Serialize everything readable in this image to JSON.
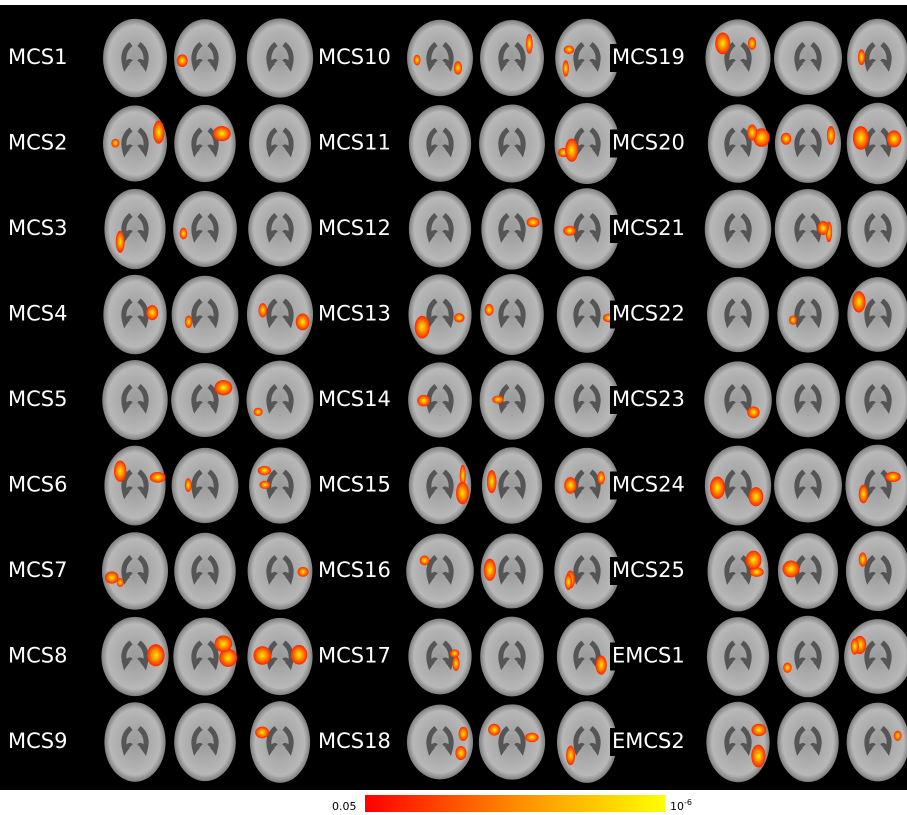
{
  "labels": [
    "MCS1",
    "MCS2",
    "MCS3",
    "MCS4",
    "MCS5",
    "MCS6",
    "MCS7",
    "MCS8",
    "MCS9",
    "MCS10",
    "MCS11",
    "MCS12",
    "MCS13",
    "MCS14",
    "MCS15",
    "MCS16",
    "MCS17",
    "MCS18",
    "MCS19",
    "MCS20",
    "MCS21",
    "MCS22",
    "MCS23",
    "MCS24",
    "MCS25",
    "EMCS1",
    "EMCS2"
  ],
  "colorbar": {
    "min_label": "0.05",
    "max_label_base": "10",
    "max_label_exponent": "-6"
  }
}
